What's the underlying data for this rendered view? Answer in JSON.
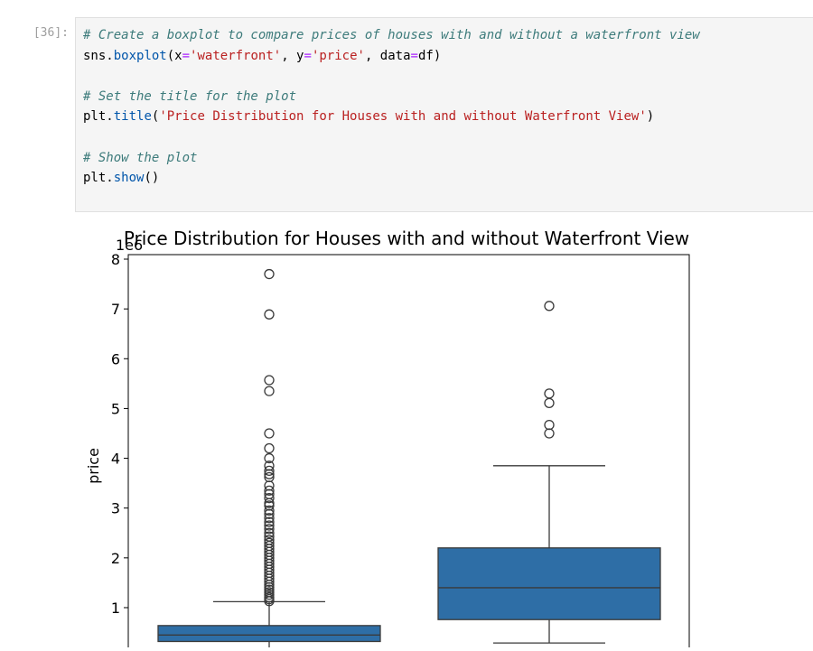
{
  "cell": {
    "prompt": "[36]:",
    "lines": [
      {
        "kind": "comment",
        "text": "# Create a boxplot to compare prices of houses with and without a waterfront view"
      },
      {
        "kind": "code1",
        "parts": [
          "sns",
          ".",
          "boxplot",
          "(x",
          "=",
          "'waterfront'",
          ", y",
          "=",
          "'price'",
          ", data",
          "=",
          "df)"
        ]
      },
      {
        "kind": "blank"
      },
      {
        "kind": "comment",
        "text": "# Set the title for the plot"
      },
      {
        "kind": "code2",
        "parts": [
          "plt",
          ".",
          "title",
          "(",
          "'Price Distribution for Houses with and without Waterfront View'",
          ")"
        ]
      },
      {
        "kind": "blank"
      },
      {
        "kind": "comment",
        "text": "# Show the plot"
      },
      {
        "kind": "code3",
        "parts": [
          "plt",
          ".",
          "show",
          "()"
        ]
      }
    ]
  },
  "chart_data": {
    "type": "boxplot",
    "title": "Price Distribution for Houses with and without Waterfront View",
    "ylabel": "price",
    "offset_text": "1e6",
    "yticks": [
      1,
      2,
      3,
      4,
      5,
      6,
      7,
      8
    ],
    "ylim": [
      0.25,
      8.05
    ],
    "box_color": "#2e6ea6",
    "series": [
      {
        "q1": 0.32,
        "median": 0.45,
        "q3": 0.64,
        "whisker_low": 0.08,
        "whisker_high": 1.12,
        "outliers": [
          7.7,
          6.89,
          5.57,
          5.35,
          4.5,
          4.2,
          4.0,
          3.85,
          3.75,
          3.68,
          3.62,
          3.45,
          3.35,
          3.28,
          3.2,
          3.1,
          3.05,
          2.95,
          2.88,
          2.8,
          2.72,
          2.65,
          2.58,
          2.5,
          2.43,
          2.36,
          2.3,
          2.24,
          2.18,
          2.12,
          2.06,
          2.0,
          1.94,
          1.88,
          1.82,
          1.76,
          1.7,
          1.64,
          1.58,
          1.52,
          1.46,
          1.41,
          1.36,
          1.31,
          1.26,
          1.21,
          1.17,
          1.13
        ]
      },
      {
        "q1": 0.76,
        "median": 1.4,
        "q3": 2.2,
        "whisker_low": 0.29,
        "whisker_high": 3.85,
        "outliers": [
          7.06,
          5.3,
          5.11,
          4.67,
          4.5
        ]
      }
    ]
  }
}
